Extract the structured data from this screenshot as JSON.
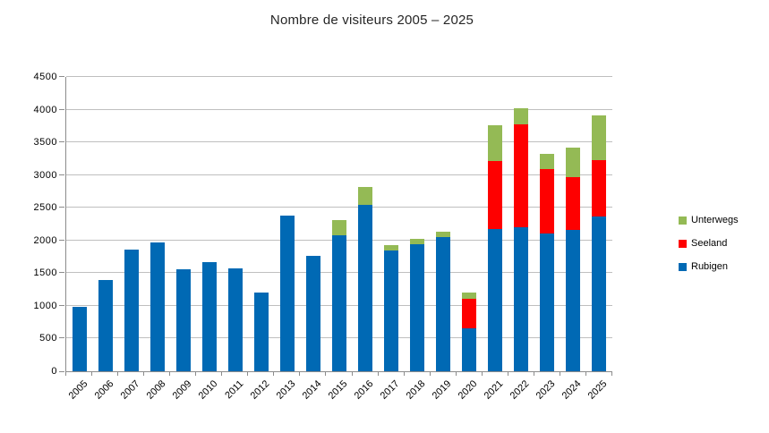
{
  "title": "Nombre de visiteurs 2005 – 2025",
  "legend": {
    "items": [
      {
        "label": "Unterwegs",
        "color": "#94BA55"
      },
      {
        "label": "Seeland",
        "color": "#FE0000"
      },
      {
        "label": "Rubigen",
        "color": "#0069B4"
      }
    ]
  },
  "colors": {
    "rubigen": "#0069B4",
    "seeland": "#FE0000",
    "unterwegs": "#94BA55",
    "gridline": "#BFBFBF",
    "axis": "#8C8C8C"
  },
  "chart_data": {
    "type": "bar",
    "stacked": true,
    "title": "Nombre de visiteurs 2005 – 2025",
    "categories": [
      "2005",
      "2006",
      "2007",
      "2008",
      "2009",
      "2010",
      "2011",
      "2012",
      "2013",
      "2014",
      "2015",
      "2016",
      "2017",
      "2018",
      "2019",
      "2020",
      "2021",
      "2022",
      "2023",
      "2024",
      "2025"
    ],
    "series": [
      {
        "name": "Rubigen",
        "color": "#0069B4",
        "values": [
          990,
          1400,
          1855,
          1965,
          1560,
          1675,
          1575,
          1210,
          2385,
          1770,
          2080,
          2545,
          1845,
          1945,
          2050,
          650,
          2180,
          2200,
          2110,
          2155,
          2370
        ]
      },
      {
        "name": "Seeland",
        "color": "#FE0000",
        "values": [
          0,
          0,
          0,
          0,
          0,
          0,
          0,
          0,
          0,
          0,
          0,
          0,
          0,
          0,
          0,
          460,
          1030,
          1575,
          980,
          815,
          860
        ]
      },
      {
        "name": "Unterwegs",
        "color": "#94BA55",
        "values": [
          0,
          0,
          0,
          0,
          0,
          0,
          0,
          0,
          0,
          0,
          230,
          275,
          85,
          85,
          90,
          100,
          550,
          245,
          230,
          445,
          680
        ]
      }
    ],
    "totals": [
      990,
      1400,
      1855,
      1965,
      1560,
      1675,
      1575,
      1210,
      2385,
      1770,
      2310,
      2820,
      1930,
      2030,
      2140,
      1210,
      3760,
      4020,
      3320,
      3415,
      3910
    ],
    "xlabel": "",
    "ylabel": "",
    "ylim": [
      0,
      4500
    ],
    "ytick_step": 500,
    "yticks": [
      "0",
      "500",
      "1000",
      "1500",
      "2000",
      "2500",
      "3000",
      "3500",
      "4000",
      "4500"
    ],
    "grid": true,
    "legend_position": "right",
    "legend_entries": [
      "Unterwegs",
      "Seeland",
      "Rubigen"
    ]
  }
}
